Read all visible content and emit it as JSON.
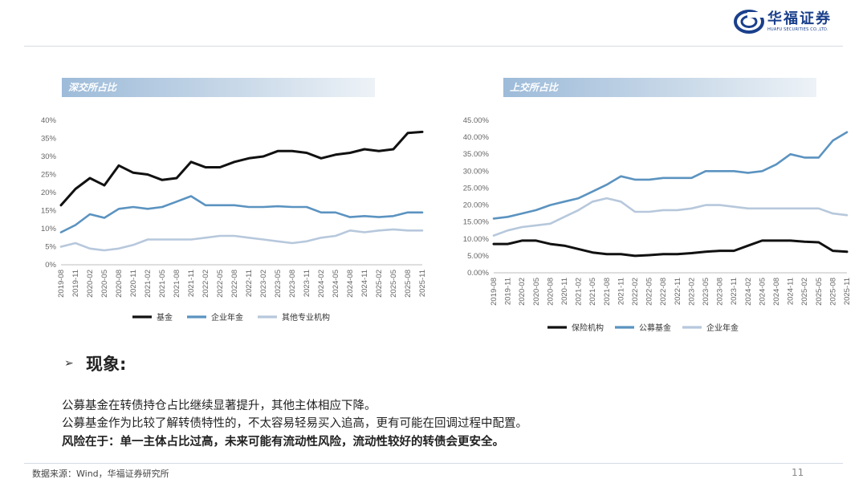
{
  "logo": {
    "cn": "华福证券",
    "en": "HUAFU SECURITIES CO.,LTD."
  },
  "colors": {
    "black": "#111111",
    "blue": "#5b93c0",
    "light": "#b7c8dc"
  },
  "charts": [
    {
      "title": "深交所占比"
    },
    {
      "title": "上交所占比"
    }
  ],
  "chart_data": [
    {
      "type": "line",
      "title": "深交所占比",
      "x": [
        "2019-08",
        "2019-11",
        "2020-02",
        "2020-05",
        "2020-08",
        "2020-11",
        "2021-02",
        "2021-05",
        "2021-08",
        "2021-11",
        "2022-02",
        "2022-05",
        "2022-08",
        "2022-11",
        "2023-02",
        "2023-05",
        "2023-08",
        "2023-11",
        "2024-02",
        "2024-05",
        "2024-08",
        "2024-11",
        "2025-02",
        "2025-05",
        "2025-08",
        "2025-11"
      ],
      "yticks": [
        "0%",
        "5%",
        "10%",
        "15%",
        "20%",
        "25%",
        "30%",
        "35%",
        "40%"
      ],
      "ylim": [
        0,
        40
      ],
      "series": [
        {
          "name": "基金",
          "color": "#111111",
          "values": [
            16.5,
            21,
            24,
            22,
            27.5,
            25.5,
            25,
            23.5,
            24,
            28.5,
            27,
            27,
            28.5,
            29.5,
            30,
            31.5,
            31.5,
            31,
            29.5,
            30.5,
            31,
            32,
            31.5,
            32,
            36.5,
            36.8
          ]
        },
        {
          "name": "企业年金",
          "color": "#5b93c0",
          "values": [
            9,
            11,
            14,
            13,
            15.5,
            16,
            15.5,
            16,
            17.5,
            19,
            16.5,
            16.5,
            16.5,
            16,
            16,
            16.2,
            16,
            16,
            14.5,
            14.5,
            13.2,
            13.5,
            13.2,
            13.5,
            14.5,
            14.5
          ]
        },
        {
          "name": "其他专业机构",
          "color": "#b7c8dc",
          "values": [
            5,
            6,
            4.5,
            4,
            4.5,
            5.5,
            7,
            7,
            7,
            7,
            7.5,
            8,
            8,
            7.5,
            7,
            6.5,
            6,
            6.5,
            7.5,
            8,
            9.5,
            9,
            9.5,
            9.8,
            9.5,
            9.5
          ]
        }
      ]
    },
    {
      "type": "line",
      "title": "上交所占比",
      "x": [
        "2019-08",
        "2019-11",
        "2020-02",
        "2020-05",
        "2020-08",
        "2020-11",
        "2021-02",
        "2021-05",
        "2021-08",
        "2021-11",
        "2022-02",
        "2022-05",
        "2022-08",
        "2022-11",
        "2023-02",
        "2023-05",
        "2023-08",
        "2023-11",
        "2024-02",
        "2024-05",
        "2024-08",
        "2024-11",
        "2025-02",
        "2025-05",
        "2025-08",
        "2025-11"
      ],
      "yticks": [
        "0.00%",
        "5.00%",
        "10.00%",
        "15.00%",
        "20.00%",
        "25.00%",
        "30.00%",
        "35.00%",
        "40.00%",
        "45.00%"
      ],
      "ylim": [
        0,
        45
      ],
      "series": [
        {
          "name": "保险机构",
          "color": "#111111",
          "values": [
            8.5,
            8.5,
            9.5,
            9.5,
            8.5,
            8,
            7,
            6,
            5.5,
            5.5,
            5,
            5.2,
            5.5,
            5.5,
            5.8,
            6.2,
            6.5,
            6.5,
            8,
            9.5,
            9.5,
            9.5,
            9.2,
            9,
            6.5,
            6.2
          ]
        },
        {
          "name": "公募基金",
          "color": "#5b93c0",
          "values": [
            16,
            16.5,
            17.5,
            18.5,
            20,
            21,
            22,
            24,
            26,
            28.5,
            27.5,
            27.5,
            28,
            28,
            28,
            30,
            30,
            30,
            29.5,
            30,
            32,
            35,
            34,
            34,
            39,
            41.5
          ]
        },
        {
          "name": "企业年金",
          "color": "#b7c8dc",
          "values": [
            11,
            12.5,
            13.5,
            14,
            14.5,
            16.5,
            18.5,
            21,
            22,
            21,
            18,
            18,
            18.5,
            18.5,
            19,
            20,
            20,
            19.5,
            19,
            19,
            19,
            19,
            19,
            19,
            17.5,
            17
          ]
        }
      ]
    }
  ],
  "phenomenon": {
    "arrow": "➢",
    "heading": "现象:",
    "line1": "公募基金在转债持仓占比继续显著提升，其他主体相应下降。",
    "line2": "公募基金作为比较了解转债特性的，不太容易轻易买入追高，更有可能在回调过程中配置。",
    "line3": "风险在于：单一主体占比过高，未来可能有流动性风险，流动性较好的转债会更安全。"
  },
  "footer": {
    "source": "数据来源：Wind，华福证券研究所",
    "page": "11"
  }
}
